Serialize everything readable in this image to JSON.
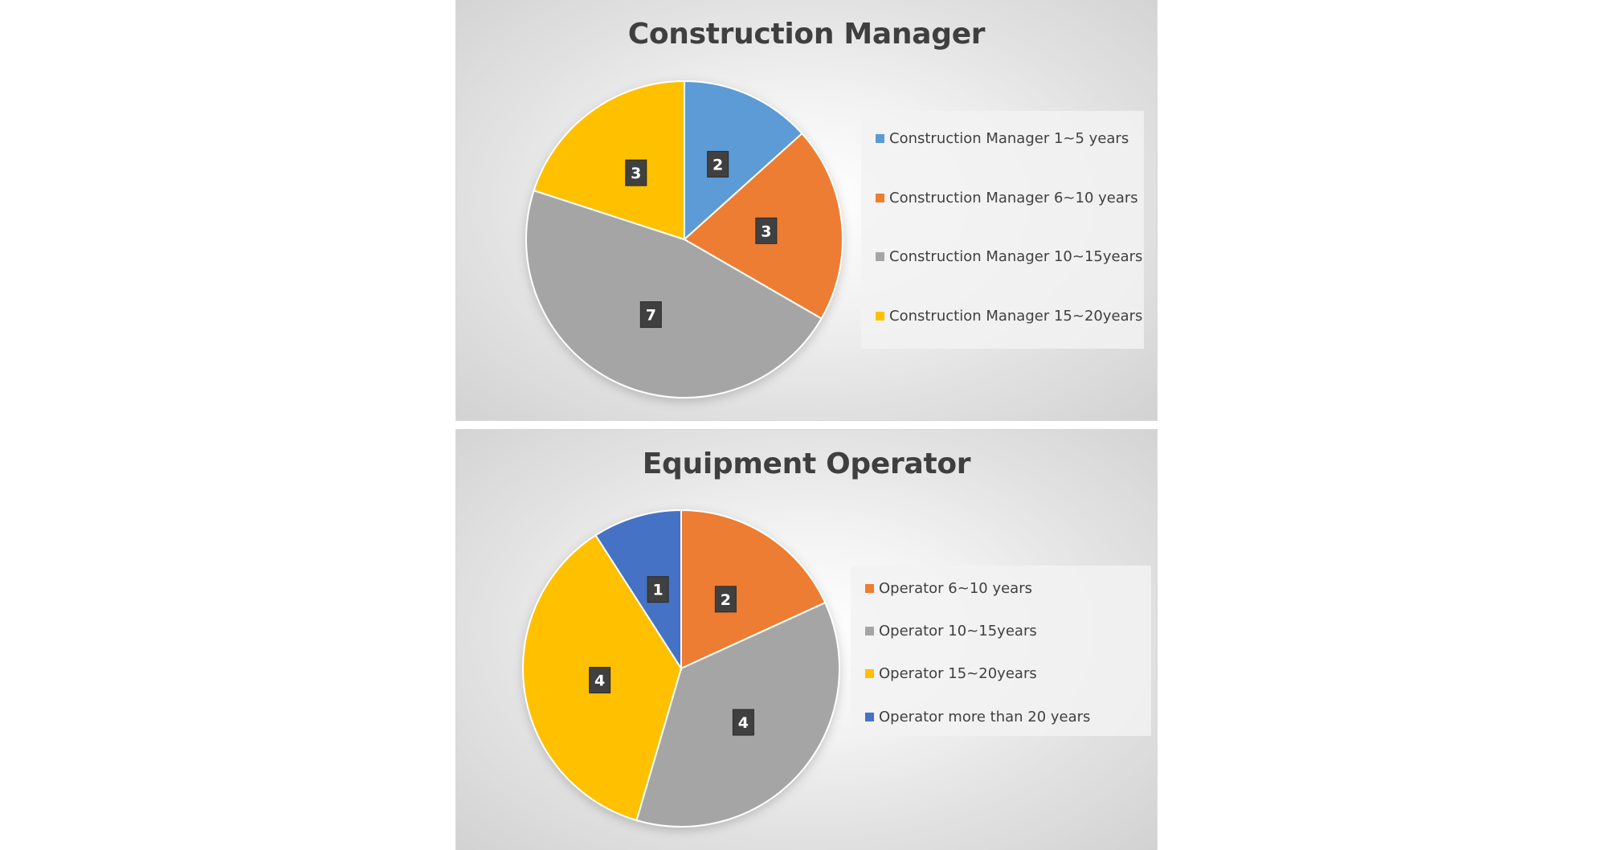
{
  "chart_data": [
    {
      "type": "pie",
      "title": "Construction Manager",
      "categories": [
        "Construction Manager 1~5 years",
        "Construction Manager 6~10 years",
        "Construction Manager 10~15years",
        "Construction Manager 15~20years"
      ],
      "values": [
        2,
        3,
        7,
        3
      ],
      "colors": [
        "#5b9bd5",
        "#ed7d31",
        "#a5a5a5",
        "#ffc000"
      ],
      "data_labels": [
        "2",
        "3",
        "7",
        "3"
      ],
      "legend_position": "right"
    },
    {
      "type": "pie",
      "title": "Equipment Operator",
      "categories": [
        "Operator 6~10 years",
        "Operator 10~15years",
        "Operator 15~20years",
        "Operator more than 20 years"
      ],
      "values": [
        2,
        4,
        4,
        1
      ],
      "colors": [
        "#ed7d31",
        "#a5a5a5",
        "#ffc000",
        "#4472c4"
      ],
      "data_labels": [
        "2",
        "4",
        "4",
        "1"
      ],
      "legend_position": "right"
    }
  ]
}
